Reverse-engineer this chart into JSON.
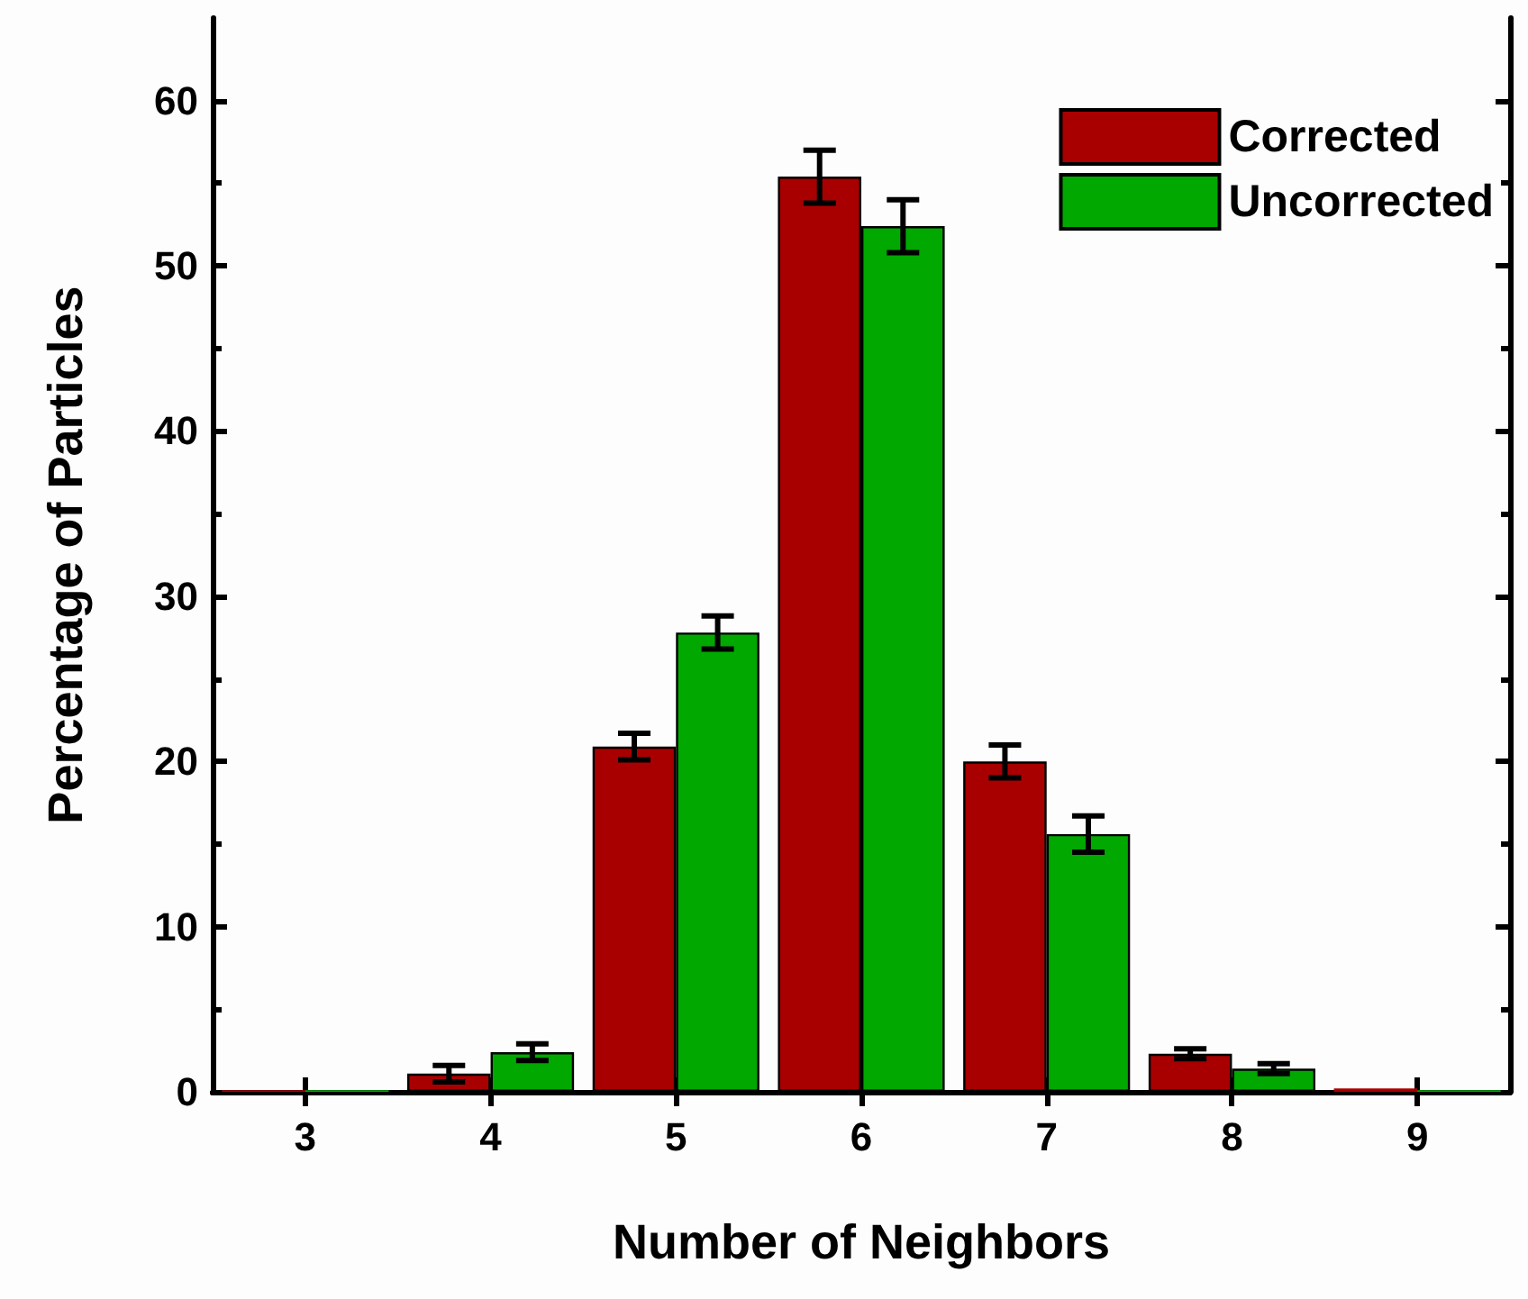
{
  "chart_data": {
    "type": "bar",
    "xlabel": "Number of Neighbors",
    "ylabel": "Percentage of Particles",
    "categories": [
      "3",
      "4",
      "5",
      "6",
      "7",
      "8",
      "9"
    ],
    "series": [
      {
        "name": "Corrected",
        "color": "#a80000",
        "values": [
          0.1,
          1.1,
          20.9,
          55.4,
          20.0,
          2.3,
          0.2
        ],
        "errors": [
          null,
          0.5,
          0.8,
          1.6,
          1.0,
          0.3,
          null
        ]
      },
      {
        "name": "Uncorrected",
        "color": "#00a800",
        "values": [
          0.1,
          2.4,
          27.8,
          52.4,
          15.6,
          1.4,
          0.1
        ],
        "errors": [
          null,
          0.5,
          1.0,
          1.6,
          1.1,
          0.3,
          null
        ]
      }
    ],
    "ylim": [
      0,
      65
    ],
    "yticks": [
      0,
      10,
      20,
      30,
      40,
      50,
      60
    ],
    "grid": false,
    "legend": "top right"
  }
}
